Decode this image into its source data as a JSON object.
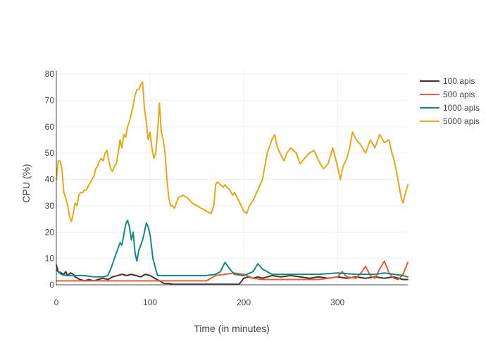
{
  "chart_data": {
    "type": "line",
    "title": "",
    "xlabel": "Time (in minutes)",
    "ylabel": "CPU (%)",
    "xlim": [
      0,
      375
    ],
    "ylim": [
      0,
      80
    ],
    "xticks": [
      0,
      100,
      200,
      300
    ],
    "yticks": [
      0,
      10,
      20,
      30,
      40,
      50,
      60,
      70,
      80
    ],
    "grid": true,
    "legend": "right",
    "series": [
      {
        "name": "100 apis",
        "color": "#4a2f28",
        "x": [
          0,
          2,
          5,
          8,
          10,
          12,
          15,
          18,
          20,
          25,
          30,
          35,
          40,
          45,
          50,
          55,
          60,
          65,
          70,
          75,
          80,
          85,
          90,
          95,
          100,
          105,
          110,
          115,
          120,
          125,
          130,
          140,
          150,
          160,
          170,
          180,
          190,
          195,
          200,
          205,
          210,
          215,
          220,
          225,
          230,
          240,
          250,
          260,
          270,
          280,
          290,
          300,
          310,
          320,
          330,
          340,
          350,
          360,
          370,
          375
        ],
        "y": [
          7.5,
          5,
          4.5,
          4,
          5,
          3.5,
          4.5,
          4,
          3,
          2,
          1.5,
          2,
          1.5,
          2,
          2.5,
          2,
          3,
          3.5,
          4,
          3.5,
          4,
          3.5,
          3,
          4,
          3.5,
          2.5,
          1.5,
          0.5,
          0.5,
          0.2,
          0.2,
          0.2,
          0.2,
          0.2,
          0.2,
          0.2,
          0.2,
          0.2,
          2.5,
          3,
          2.5,
          3,
          2.5,
          3,
          3.5,
          3,
          3.5,
          3,
          2.5,
          3,
          2.5,
          3,
          2.5,
          3,
          2.5,
          3,
          2.5,
          3,
          2,
          2
        ]
      },
      {
        "name": "500 apis",
        "color": "#e45d3c",
        "x": [
          0,
          10,
          20,
          40,
          60,
          80,
          100,
          110,
          120,
          140,
          160,
          170,
          180,
          190,
          200,
          210,
          220,
          240,
          260,
          280,
          290,
          300,
          305,
          310,
          320,
          325,
          330,
          335,
          340,
          345,
          350,
          355,
          360,
          365,
          370,
          375
        ],
        "y": [
          1.5,
          1.5,
          1.5,
          1.5,
          1.5,
          1.5,
          1.5,
          1.5,
          1.5,
          1.5,
          1.5,
          3.5,
          4,
          4.5,
          4,
          2.5,
          2,
          2,
          2,
          2,
          2.5,
          3,
          5,
          3,
          2.5,
          4.5,
          7,
          3.5,
          2.5,
          6,
          9,
          4.5,
          2.5,
          2,
          4,
          8.5
        ]
      },
      {
        "name": "1000 apis",
        "color": "#15877f",
        "x": [
          0,
          5,
          10,
          20,
          30,
          40,
          50,
          55,
          58,
          62,
          65,
          68,
          70,
          72,
          74,
          76,
          78,
          80,
          82,
          84,
          86,
          88,
          90,
          92,
          94,
          96,
          98,
          100,
          103,
          106,
          108,
          112,
          120,
          130,
          140,
          150,
          160,
          170,
          175,
          180,
          185,
          190,
          200,
          210,
          215,
          220,
          230,
          240,
          260,
          280,
          300,
          320,
          340,
          350,
          360,
          370,
          375
        ],
        "y": [
          5.5,
          4,
          3.5,
          3.5,
          3.5,
          3,
          3,
          3.5,
          6,
          10,
          13,
          16,
          15,
          19,
          23,
          24.5,
          22,
          17,
          20,
          12,
          9,
          13,
          15,
          17,
          20,
          23.5,
          22,
          19,
          10,
          6,
          3.5,
          3.5,
          3.5,
          3.5,
          3.5,
          3.5,
          3.5,
          4,
          5,
          8.5,
          6,
          4,
          3.5,
          5,
          8,
          6,
          4,
          4,
          4,
          4,
          4.5,
          4,
          4,
          4.5,
          4,
          3.5,
          3
        ]
      },
      {
        "name": "5000 apis",
        "color": "#e0a81c",
        "x": [
          0,
          2,
          4,
          6,
          8,
          10,
          12,
          14,
          16,
          18,
          20,
          22,
          24,
          26,
          28,
          30,
          32,
          35,
          38,
          40,
          42,
          44,
          46,
          48,
          50,
          52,
          54,
          56,
          58,
          60,
          62,
          64,
          66,
          68,
          70,
          72,
          74,
          76,
          78,
          80,
          82,
          84,
          86,
          88,
          90,
          92,
          94,
          96,
          98,
          100,
          102,
          104,
          106,
          108,
          110,
          112,
          114,
          116,
          118,
          120,
          122,
          124,
          126,
          128,
          130,
          135,
          140,
          145,
          150,
          155,
          160,
          165,
          168,
          170,
          172,
          175,
          178,
          180,
          182,
          185,
          188,
          190,
          193,
          196,
          200,
          203,
          206,
          210,
          215,
          220,
          225,
          230,
          233,
          236,
          240,
          243,
          246,
          250,
          253,
          256,
          260,
          265,
          270,
          275,
          280,
          285,
          290,
          295,
          300,
          303,
          306,
          310,
          313,
          316,
          320,
          325,
          330,
          335,
          340,
          345,
          350,
          355,
          358,
          360,
          363,
          366,
          368,
          370,
          372,
          375
        ],
        "y": [
          40,
          47,
          47,
          44,
          35,
          33,
          30,
          26,
          24,
          27,
          31,
          30,
          34,
          35,
          35,
          36,
          36,
          38,
          40,
          41,
          44,
          45,
          47,
          48,
          47,
          50,
          51,
          47,
          44,
          43,
          45,
          46,
          50,
          55,
          52,
          57,
          56,
          60,
          62,
          65,
          68,
          72,
          74,
          74,
          76,
          77,
          67,
          62,
          55,
          58,
          52,
          48,
          50,
          58,
          69,
          58,
          55,
          50,
          40,
          33,
          30,
          30,
          29,
          31,
          33,
          34,
          33,
          31,
          30,
          29,
          28,
          27,
          30,
          38,
          39,
          38,
          37,
          38,
          37,
          36,
          34,
          35,
          33,
          31,
          28,
          27,
          30,
          32,
          36,
          40,
          50,
          55,
          57,
          52,
          49,
          47,
          50,
          52,
          51,
          50,
          46,
          48,
          50,
          51,
          47,
          44,
          46,
          52,
          45,
          40,
          45,
          48,
          52,
          58,
          55,
          53,
          50,
          55,
          52,
          57,
          54,
          55,
          50,
          48,
          43,
          37,
          33,
          31,
          34,
          38
        ]
      }
    ]
  }
}
